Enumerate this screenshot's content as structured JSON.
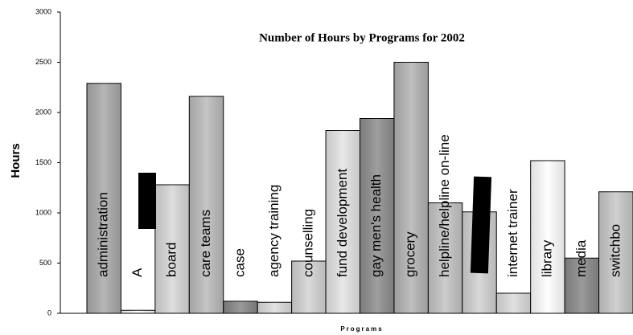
{
  "chart_data": {
    "type": "bar",
    "title": "Number of Hours by Programs for 2002",
    "x_label": "Programs",
    "y_label": "Hours",
    "categories": [
      "administration",
      "A",
      "board",
      "care teams",
      "case",
      "agency training",
      "counselling",
      "fund development",
      "gay men's health",
      "grocery",
      "helpline/helpline on-line",
      null,
      "internet trainer",
      "library",
      "media",
      "switchbo"
    ],
    "values": [
      2290,
      30,
      1280,
      2160,
      120,
      110,
      520,
      1820,
      1940,
      2500,
      1100,
      1010,
      200,
      1520,
      550,
      1210
    ],
    "colors": [
      "#aaaaaa",
      "#ffffff",
      "#d8d8d8",
      "#bbbbbb",
      "#888888",
      "#dddddd",
      "#d4d4d4",
      "#e4e4e4",
      "#8e8e8e",
      "#b4b4b4",
      "#c4c4c4",
      "#d2d2d2",
      "#dcdcdc",
      "#ffffff",
      "#8a8a8a",
      "#c8c8c8"
    ],
    "ylim": [
      0,
      3000
    ],
    "yticks": [
      0,
      500,
      1000,
      1500,
      2000,
      2500,
      3000
    ],
    "grid": false
  }
}
